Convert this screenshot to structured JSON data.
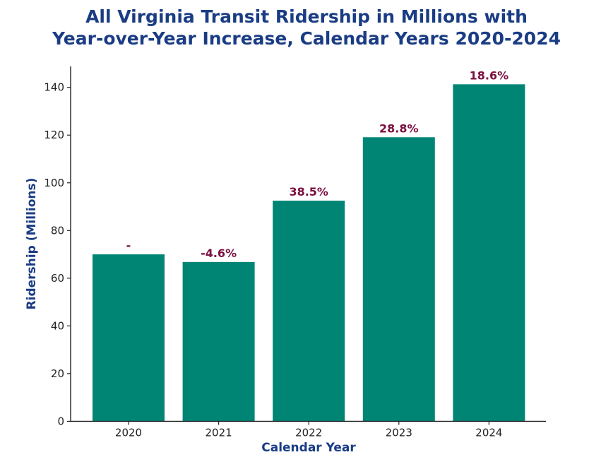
{
  "chart_data": {
    "type": "bar",
    "title_line1": "All Virginia Transit Ridership in Millions with",
    "title_line2": "Year-over-Year Increase, Calendar Years 2020-2024",
    "xlabel": "Calendar Year",
    "ylabel": "Ridership (Millions)",
    "categories": [
      "2020",
      "2021",
      "2022",
      "2023",
      "2024"
    ],
    "values": [
      70.0,
      66.8,
      92.5,
      119.1,
      141.3
    ],
    "data_labels": [
      "-",
      "-4.6%",
      "38.5%",
      "28.8%",
      "18.6%"
    ],
    "yticks": [
      0,
      20,
      40,
      60,
      80,
      100,
      120,
      140
    ],
    "ylim": [
      0,
      148.8
    ],
    "grid": false,
    "legend": "none",
    "colors": {
      "bar": "#008575",
      "data_label": "#7a1040",
      "title": "#1a3c84"
    }
  }
}
